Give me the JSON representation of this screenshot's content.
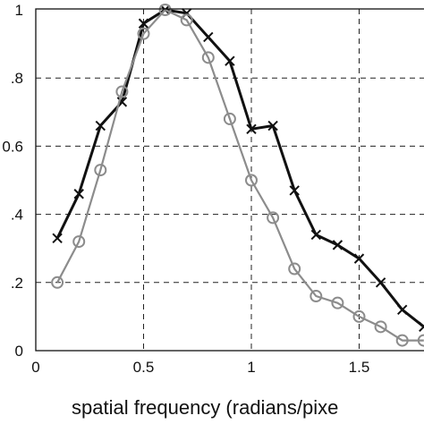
{
  "chart_data": {
    "type": "line",
    "title": "",
    "xlabel": "spatial frequency (radians/pixe",
    "ylabel": "",
    "xlim": [
      0,
      1.85
    ],
    "ylim": [
      0,
      1
    ],
    "x_ticks": [
      0,
      0.5,
      1,
      1.5
    ],
    "x_tick_labels": [
      "0",
      "0.5",
      "1",
      "1.5"
    ],
    "y_ticks": [
      0,
      0.2,
      0.4,
      0.6,
      0.8,
      1
    ],
    "y_tick_labels": [
      "0",
      ".2",
      ".4",
      "0.6",
      ".8",
      "1"
    ],
    "grid": true,
    "x": [
      0.1,
      0.2,
      0.3,
      0.4,
      0.5,
      0.6,
      0.7,
      0.8,
      0.9,
      1.0,
      1.1,
      1.2,
      1.3,
      1.4,
      1.5,
      1.6,
      1.7,
      1.8
    ],
    "series": [
      {
        "marker": "x",
        "color": "#111111",
        "values": [
          0.33,
          0.46,
          0.66,
          0.73,
          0.96,
          1.0,
          0.99,
          0.92,
          0.85,
          0.65,
          0.66,
          0.47,
          0.34,
          0.31,
          0.27,
          0.2,
          0.12,
          0.07
        ]
      },
      {
        "marker": "circle",
        "color": "#8c8c8c",
        "values": [
          0.2,
          0.32,
          0.53,
          0.76,
          0.93,
          1.0,
          0.97,
          0.86,
          0.68,
          0.5,
          0.39,
          0.24,
          0.16,
          0.14,
          0.1,
          0.07,
          0.03,
          0.03
        ]
      }
    ]
  }
}
